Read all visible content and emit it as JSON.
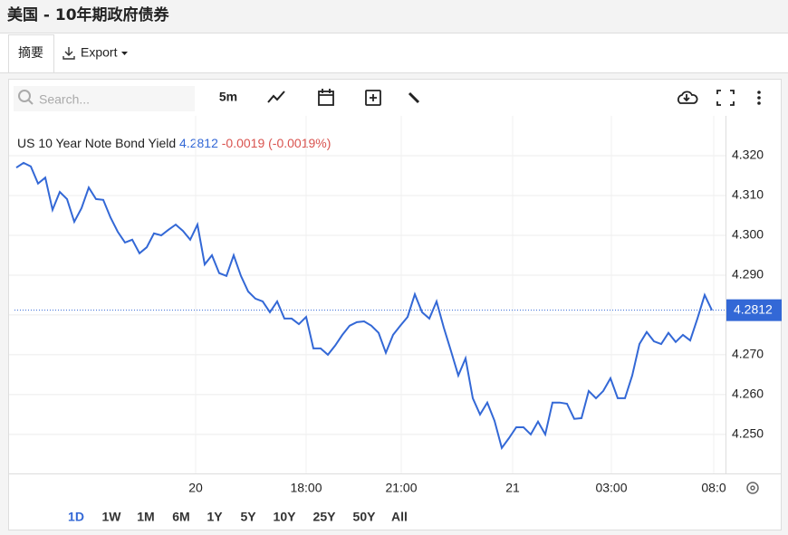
{
  "header": {
    "title": "美国 - 10年期政府债券"
  },
  "tabs": [
    "摘要",
    "Export"
  ],
  "toolbar": {
    "search_placeholder": "Search...",
    "interval": "5m"
  },
  "ranges": [
    "1D",
    "1W",
    "1M",
    "6M",
    "1Y",
    "5Y",
    "10Y",
    "25Y",
    "50Y",
    "All"
  ],
  "chart_data": {
    "type": "line",
    "series": [
      {
        "name": "US 10 Year Note Bond Yield",
        "color": "#3368d6",
        "values": [
          4.317,
          4.3182,
          4.3173,
          4.313,
          4.3145,
          4.3064,
          4.3109,
          4.3091,
          4.3034,
          4.3068,
          4.312,
          4.3091,
          4.3089,
          4.3045,
          4.3009,
          4.2982,
          4.2989,
          4.2955,
          4.297,
          4.3005,
          4.3,
          4.3014,
          4.3027,
          4.3011,
          4.2989,
          4.3027,
          4.2927,
          4.295,
          4.2905,
          4.2898,
          4.295,
          4.2898,
          4.2859,
          4.2841,
          4.2834,
          4.2807,
          4.2834,
          4.2791,
          4.2791,
          4.2777,
          4.2795,
          4.2716,
          4.2716,
          4.27,
          4.2723,
          4.275,
          4.2773,
          4.2782,
          4.2784,
          4.2773,
          4.2755,
          4.2705,
          4.275,
          4.2773,
          4.2795,
          4.2852,
          4.2807,
          4.2791,
          4.2834,
          4.2768,
          4.2709,
          4.2648,
          4.2691,
          4.2591,
          4.255,
          4.258,
          4.2534,
          4.2466,
          4.2491,
          4.2518,
          4.2518,
          4.25,
          4.2532,
          4.25,
          4.258,
          4.258,
          4.2577,
          4.2539,
          4.2541,
          4.2609,
          4.2591,
          4.2609,
          4.2641,
          4.2591,
          4.2591,
          4.2648,
          4.2727,
          4.2757,
          4.2734,
          4.2727,
          4.2755,
          4.2732,
          4.275,
          4.2736,
          4.2791,
          4.285,
          4.2812
        ]
      }
    ],
    "last_price": 4.2812,
    "change_label": "-0.0019 (-0.0019%)",
    "change_color": "#d9534f",
    "xlim": [
      -0.25,
      97.75
    ],
    "xticks": [
      {
        "value": 24.75,
        "label": "20"
      },
      {
        "value": 40,
        "label": "18:00"
      },
      {
        "value": 53.125,
        "label": "21:00"
      },
      {
        "value": 68.5,
        "label": "21"
      },
      {
        "value": 82.125,
        "label": "03:00"
      },
      {
        "value": 96.25,
        "label": "08:0"
      }
    ],
    "ylim": [
      4.2402,
      4.33
    ],
    "yticks": [
      {
        "value": 4.25,
        "label": "4.250"
      },
      {
        "value": 4.26,
        "label": "4.260"
      },
      {
        "value": 4.27,
        "label": "4.270"
      },
      {
        "value": 4.28,
        "label": "4.280"
      },
      {
        "value": 4.29,
        "label": "4.290"
      },
      {
        "value": 4.3,
        "label": "4.300"
      },
      {
        "value": 4.31,
        "label": "4.310"
      },
      {
        "value": 4.32,
        "label": "4.320"
      }
    ],
    "grid": true
  }
}
